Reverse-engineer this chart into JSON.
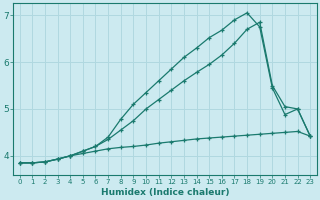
{
  "xlabel": "Humidex (Indice chaleur)",
  "bg_color": "#cceaf0",
  "grid_color": "#b0d8e0",
  "line_color": "#1a7a6e",
  "xlim": [
    -0.5,
    23.5
  ],
  "ylim": [
    3.6,
    7.25
  ],
  "yticks": [
    4,
    5,
    6,
    7
  ],
  "xticks": [
    0,
    1,
    2,
    3,
    4,
    5,
    6,
    7,
    8,
    9,
    10,
    11,
    12,
    13,
    14,
    15,
    16,
    17,
    18,
    19,
    20,
    21,
    22,
    23
  ],
  "line1_x": [
    0,
    1,
    2,
    3,
    4,
    5,
    6,
    7,
    8,
    9,
    10,
    11,
    12,
    13,
    14,
    15,
    16,
    17,
    18,
    19,
    20,
    21,
    22,
    23
  ],
  "line1_y": [
    3.85,
    3.85,
    3.87,
    3.93,
    4.0,
    4.05,
    4.1,
    4.15,
    4.18,
    4.2,
    4.23,
    4.27,
    4.3,
    4.33,
    4.36,
    4.38,
    4.4,
    4.42,
    4.44,
    4.46,
    4.48,
    4.5,
    4.52,
    4.42
  ],
  "line2_x": [
    0,
    1,
    2,
    3,
    4,
    5,
    6,
    7,
    8,
    9,
    10,
    11,
    12,
    13,
    14,
    15,
    16,
    17,
    18,
    19,
    20,
    21,
    22,
    23
  ],
  "line2_y": [
    3.85,
    3.85,
    3.87,
    3.93,
    4.0,
    4.1,
    4.2,
    4.35,
    4.55,
    4.75,
    5.0,
    5.2,
    5.4,
    5.6,
    5.78,
    5.95,
    6.15,
    6.4,
    6.7,
    6.85,
    5.5,
    5.05,
    5.0,
    4.42
  ],
  "line3_x": [
    0,
    1,
    2,
    3,
    4,
    5,
    6,
    7,
    8,
    9,
    10,
    11,
    12,
    13,
    14,
    15,
    16,
    17,
    18,
    19,
    20,
    21,
    22,
    23
  ],
  "line3_y": [
    3.85,
    3.85,
    3.87,
    3.93,
    4.0,
    4.1,
    4.2,
    4.4,
    4.78,
    5.1,
    5.35,
    5.6,
    5.85,
    6.1,
    6.3,
    6.52,
    6.68,
    6.9,
    7.05,
    6.75,
    5.45,
    4.88,
    5.0,
    4.42
  ]
}
